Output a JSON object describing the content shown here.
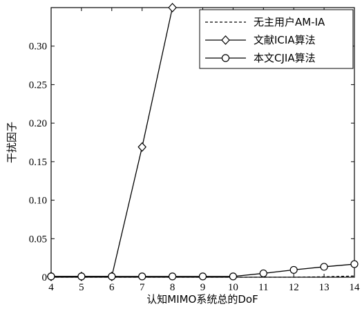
{
  "chart_data": {
    "type": "line",
    "xlabel": "认知MIMO系统总的DoF",
    "ylabel": "干扰因子",
    "xlim": [
      4,
      14
    ],
    "ylim": [
      0,
      0.35
    ],
    "x_ticks": [
      "4",
      "5",
      "6",
      "7",
      "8",
      "9",
      "10",
      "11",
      "12",
      "13",
      "14"
    ],
    "y_ticks": [
      "0",
      "0.05",
      "0.10",
      "0.15",
      "0.20",
      "0.25",
      "0.30"
    ],
    "grid": false,
    "legend_position": "top-right",
    "series": [
      {
        "name": "无主用户AM-IA",
        "style": "dashed",
        "marker": "none",
        "x": [
          4,
          5,
          6,
          7,
          8,
          9,
          10,
          11,
          12,
          13,
          14
        ],
        "y": [
          0,
          0,
          0,
          0,
          0,
          0,
          0,
          0,
          0,
          0.0005,
          0.0015
        ]
      },
      {
        "name": "文献ICIA算法",
        "style": "solid",
        "marker": "diamond",
        "x": [
          4,
          5,
          6,
          7,
          8
        ],
        "y": [
          0.001,
          0.001,
          0.001,
          0.169,
          0.35
        ]
      },
      {
        "name": "本文CJIA算法",
        "style": "solid",
        "marker": "circle",
        "x": [
          4,
          5,
          6,
          7,
          8,
          9,
          10,
          11,
          12,
          13,
          14
        ],
        "y": [
          0.001,
          0.001,
          0.001,
          0.001,
          0.001,
          0.001,
          0.001,
          0.005,
          0.0095,
          0.0135,
          0.017
        ]
      }
    ]
  }
}
